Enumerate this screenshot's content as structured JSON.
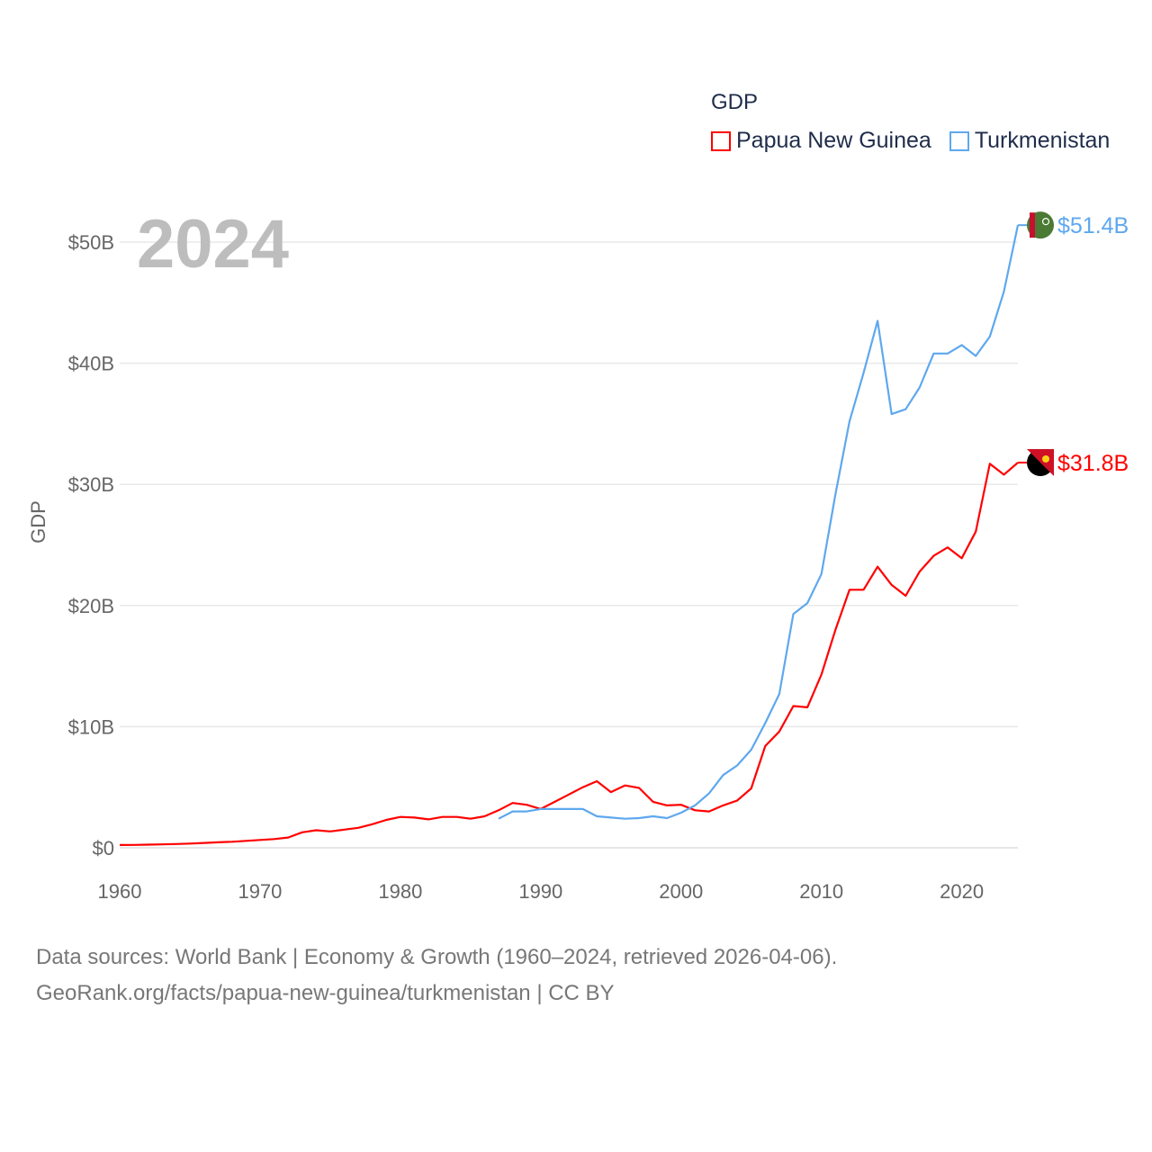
{
  "chart_data": {
    "type": "line",
    "title": "GDP",
    "ylabel": "GDP",
    "xlabel": "",
    "year_label": "2024",
    "xlim": [
      1960,
      2024
    ],
    "ylim": [
      0,
      50
    ],
    "x_ticks": [
      "1960",
      "1970",
      "1980",
      "1990",
      "2000",
      "2010",
      "2020"
    ],
    "y_ticks": [
      {
        "v": 0,
        "label": "$0"
      },
      {
        "v": 10,
        "label": "$10B"
      },
      {
        "v": 20,
        "label": "$20B"
      },
      {
        "v": 30,
        "label": "$30B"
      },
      {
        "v": 40,
        "label": "$40B"
      },
      {
        "v": 50,
        "label": "$50B"
      }
    ],
    "grid": true,
    "legend_position": "top-right",
    "units": "billion USD",
    "series": [
      {
        "name": "Papua New Guinea",
        "color": "#ff0000",
        "end_label": "$31.8B",
        "icon": "png-flag-icon",
        "start": 1960,
        "values": [
          0.23,
          0.24,
          0.26,
          0.28,
          0.31,
          0.35,
          0.4,
          0.45,
          0.5,
          0.57,
          0.65,
          0.72,
          0.85,
          1.28,
          1.45,
          1.35,
          1.5,
          1.65,
          1.95,
          2.3,
          2.55,
          2.5,
          2.35,
          2.55,
          2.55,
          2.4,
          2.6,
          3.1,
          3.7,
          3.55,
          3.2,
          3.8,
          4.4,
          5.0,
          5.5,
          4.6,
          5.15,
          4.95,
          3.8,
          3.5,
          3.55,
          3.1,
          3.0,
          3.5,
          3.9,
          4.9,
          8.4,
          9.6,
          11.7,
          11.6,
          14.3,
          18.0,
          21.3,
          21.3,
          23.2,
          21.7,
          20.8,
          22.8,
          24.1,
          24.8,
          23.9,
          26.1,
          31.7,
          30.8,
          31.8
        ]
      },
      {
        "name": "Turkmenistan",
        "color": "#5ea8ee",
        "end_label": "$51.4B",
        "icon": "turkmenistan-flag-icon",
        "start": 1987,
        "values": [
          2.4,
          3.0,
          3.0,
          3.2,
          3.2,
          3.2,
          3.2,
          2.6,
          2.5,
          2.4,
          2.45,
          2.6,
          2.45,
          2.9,
          3.5,
          4.5,
          6.0,
          6.8,
          8.1,
          10.3,
          12.7,
          19.3,
          20.2,
          22.6,
          29.2,
          35.2,
          39.2,
          43.5,
          35.8,
          36.2,
          38.0,
          40.8,
          40.8,
          41.5,
          40.6,
          42.2,
          45.9,
          51.4
        ]
      }
    ]
  },
  "footer": {
    "line1": "Data sources: World Bank | Economy & Growth (1960–2024, retrieved 2026-04-06).",
    "line2": "GeoRank.org/facts/papua-new-guinea/turkmenistan | CC BY"
  }
}
